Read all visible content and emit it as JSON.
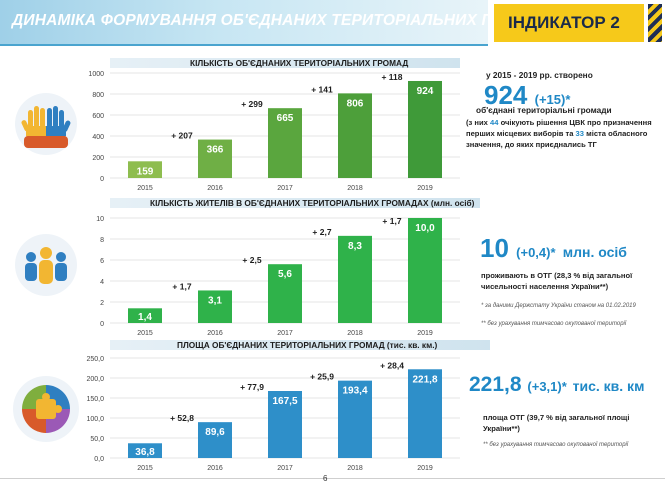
{
  "header": {
    "title": "ДИНАМІКА ФОРМУВАННЯ ОБ'ЄДНАНИХ ТЕРИТОРІАЛЬНИХ ГРОМАД",
    "indicator": "ІНДИКАТОР 2"
  },
  "section1": {
    "lead": "у 2015 - 2019 рр. створено",
    "big_value": "924",
    "big_delta": "(+15)*",
    "subtitle": "об'єднані територіальні громади",
    "detail_pre": "(з них ",
    "detail_num1": "44",
    "detail_mid": " очікують рішення ЦВК про призначення перших місцевих виборів та ",
    "detail_num2": "33",
    "detail_post": " міста обласного значення, до яких приєднались ТГ"
  },
  "section2": {
    "big_value": "10",
    "big_delta": "(+0,4)*",
    "big_unit": "млн. осіб",
    "text": "проживають в ОТГ (28,3 % від загальної чисельності населення України**)",
    "note1": "* за даними Держстату України станом на 01.02.2019",
    "note2": "** без урахування тимчасово окупованої території"
  },
  "section3": {
    "big_value": "221,8",
    "big_delta": "(+3,1)*",
    "big_unit": "тис. кв. км",
    "text": "площа ОТГ (39,7 % від загальної площі України**)",
    "note": "** без урахування тимчасово окупованої території"
  },
  "page_number": "6",
  "colors": {
    "bar_light": "#8ebd4f",
    "bar_mid": "#5aa63e",
    "bar_dark": "#3f9a39",
    "bar_green": "#2fb24a",
    "accent_blue": "#1f88c6",
    "indicator_yellow": "#f6c91a"
  },
  "chart_data": [
    {
      "type": "bar",
      "title": "КІЛЬКІСТЬ ОБ'ЄДНАНИХ ТЕРИТОРІАЛЬНИХ ГРОМАД",
      "categories": [
        "2015",
        "2016",
        "2017",
        "2018",
        "2019"
      ],
      "values": [
        159,
        366,
        665,
        806,
        924
      ],
      "value_labels": [
        "159",
        "366",
        "665",
        "806",
        "924"
      ],
      "increments": [
        "+ 207",
        "+ 299",
        "+ 141",
        "+ 118"
      ],
      "ylim": [
        0,
        1000
      ],
      "yticks": [
        0,
        200,
        400,
        600,
        800,
        1000
      ],
      "ytick_labels": [
        "0",
        "200",
        "400",
        "600",
        "800",
        "1000"
      ],
      "bar_colors": [
        "#8ebd4f",
        "#6faf45",
        "#5aa63e",
        "#4d9f3a",
        "#3f9a39"
      ]
    },
    {
      "type": "bar",
      "title": "КІЛЬКІСТЬ ЖИТЕЛІВ В ОБ'ЄДНАНИХ ТЕРИТОРІАЛЬНИХ ГРОМАДАХ (млн. осіб)",
      "categories": [
        "2015",
        "2016",
        "2017",
        "2018",
        "2019"
      ],
      "values": [
        1.4,
        3.1,
        5.6,
        8.3,
        10.0
      ],
      "value_labels": [
        "1,4",
        "3,1",
        "5,6",
        "8,3",
        "10,0"
      ],
      "increments": [
        "+ 1,7",
        "+ 2,5",
        "+ 2,7",
        "+ 1,7"
      ],
      "ylim": [
        0,
        10
      ],
      "yticks": [
        0,
        2,
        4,
        6,
        8,
        10
      ],
      "ytick_labels": [
        "0",
        "2",
        "4",
        "6",
        "8",
        "10"
      ],
      "bar_colors": [
        "#2fb24a",
        "#2fb24a",
        "#2fb24a",
        "#2fb24a",
        "#2fb24a"
      ]
    },
    {
      "type": "bar",
      "title": "ПЛОЩА ОБ'ЄДНАНИХ ТЕРИТОРІАЛЬНИХ ГРОМАД (тис. кв. км.)",
      "categories": [
        "2015",
        "2016",
        "2017",
        "2018",
        "2019"
      ],
      "values": [
        36.8,
        89.6,
        167.5,
        193.4,
        221.8
      ],
      "value_labels": [
        "36,8",
        "89,6",
        "167,5",
        "193,4",
        "221,8"
      ],
      "increments": [
        "+ 52,8",
        "+ 77,9",
        "+ 25,9",
        "+ 28,4"
      ],
      "ylim": [
        0,
        250
      ],
      "yticks": [
        0,
        50,
        100,
        150,
        200,
        250
      ],
      "ytick_labels": [
        "0,0",
        "50,0",
        "100,0",
        "150,0",
        "200,0",
        "250,0"
      ],
      "bar_colors": [
        "#2e8fc9",
        "#2e8fc9",
        "#2e8fc9",
        "#2e8fc9",
        "#2e8fc9"
      ]
    }
  ]
}
